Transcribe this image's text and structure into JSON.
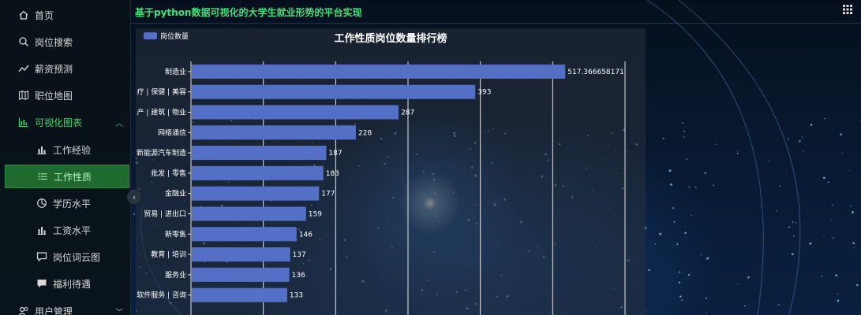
{
  "header": {
    "title": "基于python数据可视化的大学生就业形势的平台实现",
    "grid_icon": "grid-icon"
  },
  "sidebar": {
    "items": [
      {
        "label": "首页",
        "icon": "home-icon"
      },
      {
        "label": "岗位搜索",
        "icon": "search-icon"
      },
      {
        "label": "薪资预测",
        "icon": "trend-icon"
      },
      {
        "label": "职位地图",
        "icon": "map-icon"
      },
      {
        "label": "可视化图表",
        "icon": "chart-icon",
        "expanded": true
      },
      {
        "label": "工作经验",
        "icon": "bar-chart-icon"
      },
      {
        "label": "工作性质",
        "icon": "list-icon",
        "active": true
      },
      {
        "label": "学历水平",
        "icon": "pie-icon"
      },
      {
        "label": "工资水平",
        "icon": "bar-chart-icon"
      },
      {
        "label": "岗位词云图",
        "icon": "comment-icon"
      },
      {
        "label": "福利待遇",
        "icon": "chat-icon"
      },
      {
        "label": "用户管理",
        "icon": "users-icon"
      }
    ]
  },
  "colors": {
    "accent": "#45e07a",
    "bar": "#5470c6",
    "active_bg": "#1f6a2e"
  },
  "chart_data": {
    "type": "bar",
    "orientation": "horizontal",
    "title": "工作性质岗位数量排行榜",
    "legend": [
      "岗位数量"
    ],
    "legend_position": "top-left",
    "grid": true,
    "xlim": [
      0,
      600
    ],
    "categories": [
      "制造业",
      "疗 | 保健 | 美容",
      "产 | 建筑 | 物业",
      "网络通信",
      "新能源汽车制造",
      "批发 | 零售",
      "金融业",
      "贸易 | 进出口",
      "新零售",
      "教育 | 培训",
      "服务业",
      "软件服务 | 咨询"
    ],
    "series": [
      {
        "name": "岗位数量",
        "values": [
          517.366658171,
          393,
          287,
          228,
          187,
          183,
          177,
          159,
          146,
          137,
          136,
          133
        ]
      }
    ],
    "value_labels": [
      "517.366658171",
      "393",
      "287",
      "228",
      "187",
      "183",
      "177",
      "159",
      "146",
      "137",
      "136",
      "133"
    ]
  }
}
